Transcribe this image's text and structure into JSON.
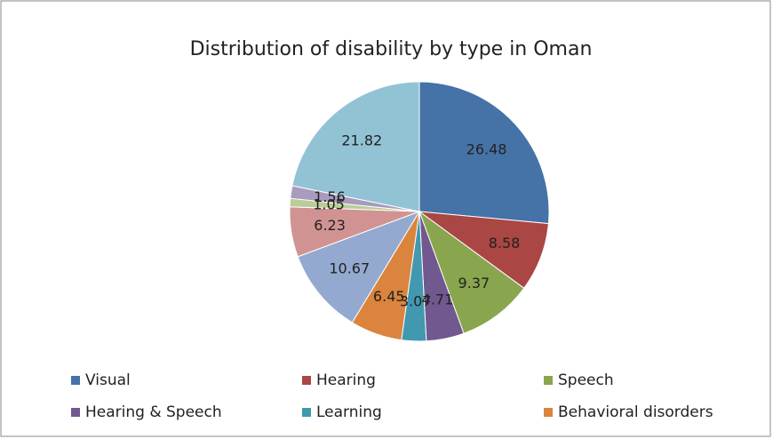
{
  "chart_data": {
    "type": "pie",
    "title": "Distribution of disability by type in Oman",
    "categories": [
      "Visual",
      "Hearing",
      "Speech",
      "Hearing & Speech",
      "Learning",
      "Behavioral disorders",
      null,
      null,
      null,
      null,
      null
    ],
    "values": [
      26.48,
      8.58,
      9.37,
      4.71,
      3.07,
      6.45,
      10.67,
      6.23,
      1.05,
      1.56,
      21.82
    ],
    "colors": [
      "#4572a7",
      "#aa4643",
      "#89a54e",
      "#71588f",
      "#4198af",
      "#db843d",
      "#93a9cf",
      "#d19392",
      "#b9cd96",
      "#a99bbd",
      "#92c3d5"
    ]
  }
}
